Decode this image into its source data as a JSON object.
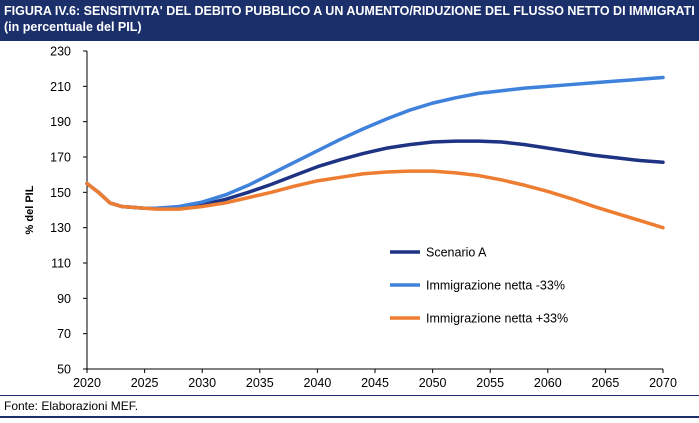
{
  "chart_data": {
    "type": "line",
    "title": "FIGURA IV.6: SENSITIVITA' DEL DEBITO PUBBLICO A UN AUMENTO/RIDUZIONE DEL FLUSSO NETTO DI IMMIGRATI (in percentuale del PIL)",
    "y_label": "% del PIL",
    "source": "Fonte: Elaborazioni MEF.",
    "x": [
      2020,
      2021,
      2022,
      2023,
      2024,
      2025,
      2026,
      2028,
      2030,
      2032,
      2034,
      2036,
      2038,
      2040,
      2042,
      2044,
      2046,
      2048,
      2050,
      2052,
      2054,
      2056,
      2058,
      2060,
      2062,
      2064,
      2066,
      2068,
      2070
    ],
    "series": [
      {
        "name": "Scenario A",
        "color": "#1f3384",
        "values": [
          155,
          150,
          144,
          142,
          141.5,
          141,
          141,
          141.5,
          143,
          146,
          150,
          154.5,
          159.5,
          164.5,
          168.5,
          172,
          175,
          177,
          178.5,
          179,
          179,
          178.5,
          177,
          175,
          173,
          171,
          169.5,
          168,
          167
        ]
      },
      {
        "name": "Immigrazione netta -33%",
        "color": "#3f82dc",
        "values": [
          155,
          150,
          144,
          142,
          141.5,
          141,
          141,
          142,
          144.5,
          148.5,
          154,
          160.5,
          167,
          173.5,
          180,
          186,
          191.5,
          196.5,
          200.5,
          203.5,
          206,
          207.5,
          209,
          210,
          211,
          212,
          213,
          214,
          215
        ]
      },
      {
        "name": "Immigrazione netta +33%",
        "color": "#ee7d31",
        "values": [
          155,
          150,
          144,
          142,
          141.5,
          141,
          140.5,
          140.5,
          142,
          144,
          147,
          150,
          153.5,
          156.5,
          158.5,
          160.5,
          161.5,
          162,
          162,
          161,
          159.5,
          157,
          154,
          150.5,
          146.5,
          142,
          138,
          134,
          130
        ]
      }
    ],
    "xlim": [
      2020,
      2070
    ],
    "xticks": [
      2020,
      2025,
      2030,
      2035,
      2040,
      2045,
      2050,
      2055,
      2060,
      2065,
      2070
    ],
    "ylim": [
      50,
      230
    ],
    "yticks": [
      50,
      70,
      90,
      110,
      130,
      150,
      170,
      190,
      210,
      230
    ],
    "grid": false
  }
}
